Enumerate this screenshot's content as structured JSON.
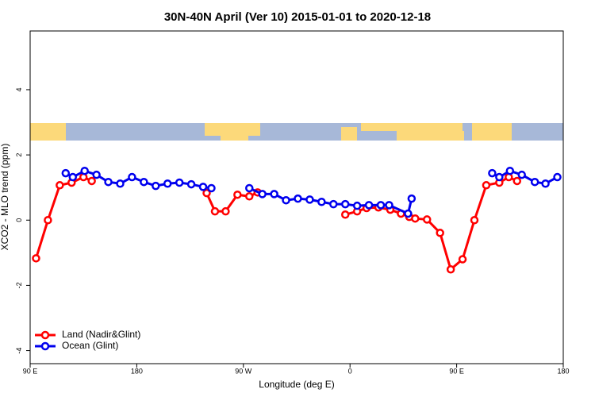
{
  "chart_data": {
    "type": "line",
    "title": "30N-40N April (Ver 10)   2015-01-01 to 2020-12-18",
    "xlabel": "Longitude (deg E)",
    "ylabel": "XCO2 - MLO trend (ppm)",
    "xlim": [
      90,
      540
    ],
    "ylim": [
      -4.4,
      5.8
    ],
    "xticks": [
      {
        "value": 90,
        "label": "90 E"
      },
      180,
      {
        "value": 270,
        "label": "90 W"
      },
      {
        "value": 360,
        "label": "0"
      },
      {
        "value": 450,
        "label": "90 E"
      },
      {
        "value": 540,
        "label": "180"
      }
    ],
    "yticks": [
      -4,
      -2,
      0,
      2,
      4
    ],
    "legend": "bottom-left",
    "series": [
      {
        "name": "Land (Nadir&Glint)",
        "color": "#ff0000",
        "x": [
          95,
          105,
          115,
          125,
          135,
          142,
          null,
          239,
          246,
          255,
          265,
          275,
          282,
          null,
          356,
          366,
          374,
          384,
          394,
          403,
          410,
          415,
          425,
          436,
          445,
          455,
          465,
          475,
          486,
          494,
          501
        ],
        "values": [
          -1.17,
          0,
          1.07,
          1.15,
          1.32,
          1.2,
          null,
          0.83,
          0.27,
          0.27,
          0.78,
          0.73,
          0.85,
          null,
          0.17,
          0.27,
          0.37,
          0.39,
          0.32,
          0.2,
          0.1,
          0.05,
          0.02,
          -0.39,
          -1.51,
          -1.2,
          0,
          1.07,
          1.15,
          1.32,
          1.2
        ]
      },
      {
        "name": "Ocean (Glint)",
        "color": "#0000ee",
        "x": [
          120,
          126,
          136,
          146,
          156,
          166,
          176,
          186,
          196,
          206,
          216,
          226,
          236,
          243,
          null,
          275,
          286,
          296,
          306,
          316,
          326,
          336,
          346,
          356,
          366,
          376,
          386,
          393,
          409,
          412,
          null,
          480,
          486,
          495,
          505,
          516,
          525,
          535
        ],
        "values": [
          1.44,
          1.32,
          1.51,
          1.39,
          1.17,
          1.12,
          1.32,
          1.17,
          1.05,
          1.12,
          1.15,
          1.1,
          1.02,
          0.98,
          null,
          0.98,
          0.8,
          0.8,
          0.61,
          0.66,
          0.63,
          0.56,
          0.49,
          0.49,
          0.44,
          0.46,
          0.46,
          0.46,
          0.2,
          0.66,
          null,
          1.44,
          1.32,
          1.51,
          1.39,
          1.17,
          1.12,
          1.32
        ]
      }
    ]
  }
}
